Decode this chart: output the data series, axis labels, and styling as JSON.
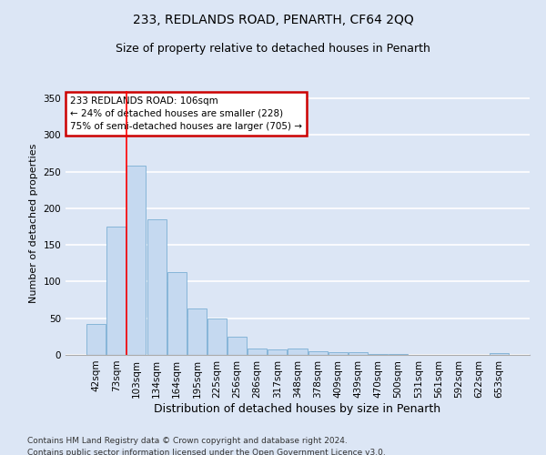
{
  "title": "233, REDLANDS ROAD, PENARTH, CF64 2QQ",
  "subtitle": "Size of property relative to detached houses in Penarth",
  "xlabel": "Distribution of detached houses by size in Penarth",
  "ylabel": "Number of detached properties",
  "categories": [
    "42sqm",
    "73sqm",
    "103sqm",
    "134sqm",
    "164sqm",
    "195sqm",
    "225sqm",
    "256sqm",
    "286sqm",
    "317sqm",
    "348sqm",
    "378sqm",
    "409sqm",
    "439sqm",
    "470sqm",
    "500sqm",
    "531sqm",
    "561sqm",
    "592sqm",
    "622sqm",
    "653sqm"
  ],
  "values": [
    42,
    175,
    258,
    185,
    113,
    63,
    50,
    25,
    9,
    8,
    9,
    5,
    4,
    4,
    1,
    1,
    0,
    0,
    0,
    0,
    3
  ],
  "bar_color": "#c5d9f0",
  "bar_edge_color": "#7bafd4",
  "red_line_index": 2,
  "annotation_text": "233 REDLANDS ROAD: 106sqm\n← 24% of detached houses are smaller (228)\n75% of semi-detached houses are larger (705) →",
  "annotation_box_color": "#ffffff",
  "annotation_box_edge": "#cc0000",
  "footer_line1": "Contains HM Land Registry data © Crown copyright and database right 2024.",
  "footer_line2": "Contains public sector information licensed under the Open Government Licence v3.0.",
  "ylim": [
    0,
    360
  ],
  "yticks": [
    0,
    50,
    100,
    150,
    200,
    250,
    300,
    350
  ],
  "bg_color": "#dce6f5",
  "fig_bg_color": "#dce6f5",
  "grid_color": "#ffffff",
  "title_fontsize": 10,
  "subtitle_fontsize": 9,
  "tick_fontsize": 7.5,
  "ylabel_fontsize": 8,
  "xlabel_fontsize": 9
}
